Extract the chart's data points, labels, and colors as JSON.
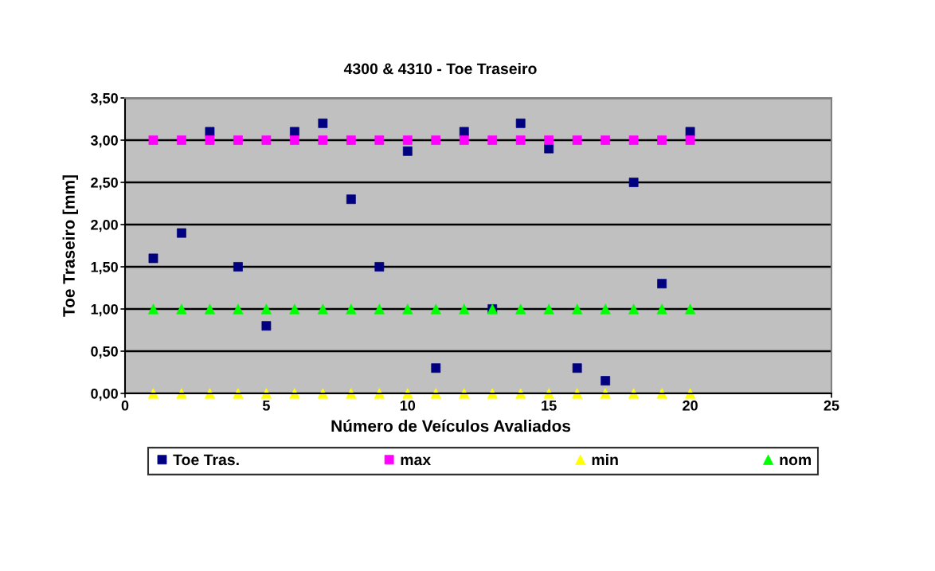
{
  "chart_data": {
    "type": "scatter",
    "title": "4300 & 4310 - Toe Traseiro",
    "xlabel": "Número de Veículos Avaliados",
    "ylabel": "Toe Traseiro [mm]",
    "x": [
      1,
      2,
      3,
      4,
      5,
      6,
      7,
      8,
      9,
      10,
      11,
      12,
      13,
      14,
      15,
      16,
      17,
      18,
      19,
      20
    ],
    "series": [
      {
        "name": "Toe Tras.",
        "color": "#000080",
        "marker": "square",
        "values": [
          1.6,
          1.9,
          3.1,
          1.5,
          0.8,
          3.1,
          3.2,
          2.3,
          1.5,
          2.87,
          0.3,
          3.1,
          1.0,
          3.2,
          2.9,
          0.3,
          0.15,
          2.5,
          1.3,
          3.1
        ]
      },
      {
        "name": "max",
        "color": "#ff00ff",
        "marker": "square",
        "values": [
          3.0,
          3.0,
          3.0,
          3.0,
          3.0,
          3.0,
          3.0,
          3.0,
          3.0,
          3.0,
          3.0,
          3.0,
          3.0,
          3.0,
          3.0,
          3.0,
          3.0,
          3.0,
          3.0,
          3.0
        ]
      },
      {
        "name": "min",
        "color": "#ffff00",
        "marker": "triangle",
        "values": [
          0,
          0,
          0,
          0,
          0,
          0,
          0,
          0,
          0,
          0,
          0,
          0,
          0,
          0,
          0,
          0,
          0,
          0,
          0,
          0
        ]
      },
      {
        "name": "nom",
        "color": "#00ff00",
        "marker": "triangle",
        "values": [
          1.0,
          1.0,
          1.0,
          1.0,
          1.0,
          1.0,
          1.0,
          1.0,
          1.0,
          1.0,
          1.0,
          1.0,
          1.0,
          1.0,
          1.0,
          1.0,
          1.0,
          1.0,
          1.0,
          1.0
        ]
      }
    ],
    "xlim": [
      0,
      25
    ],
    "xticks": [
      0,
      5,
      10,
      15,
      20,
      25
    ],
    "ylim": [
      0,
      3.5
    ],
    "yticks": [
      {
        "value": 0,
        "label": "0,00"
      },
      {
        "value": 0.5,
        "label": "0,50"
      },
      {
        "value": 1.0,
        "label": "1,00"
      },
      {
        "value": 1.5,
        "label": "1,50"
      },
      {
        "value": 2.0,
        "label": "2,00"
      },
      {
        "value": 2.5,
        "label": "2,50"
      },
      {
        "value": 3.0,
        "label": "3,00"
      },
      {
        "value": 3.5,
        "label": "3,50"
      }
    ],
    "grid": "y",
    "legend": "bottom"
  }
}
